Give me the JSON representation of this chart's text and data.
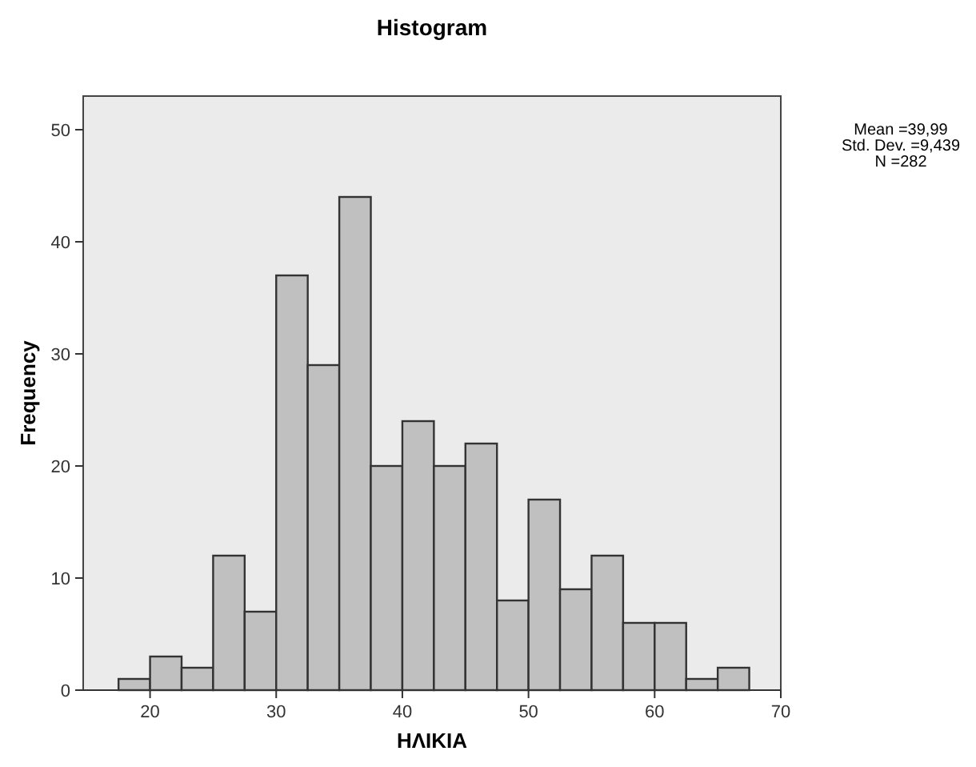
{
  "chart_data": {
    "type": "histogram",
    "title": "Histogram",
    "xlabel": "ΗΛΙΚΙΑ",
    "ylabel": "Frequency",
    "bins": [
      17.5,
      20,
      22.5,
      25,
      27.5,
      30,
      32.5,
      35,
      37.5,
      40,
      42.5,
      45,
      47.5,
      50,
      52.5,
      55,
      57.5,
      60,
      62.5,
      65,
      67.5
    ],
    "values": [
      1,
      3,
      2,
      12,
      7,
      37,
      29,
      44,
      20,
      24,
      20,
      22,
      8,
      17,
      9,
      12,
      6,
      6,
      1,
      2
    ],
    "color": "#c0c0c0",
    "xlim": [
      14.7,
      70
    ],
    "xticks": [
      20,
      30,
      40,
      50,
      60,
      70
    ],
    "ylim": [
      0,
      53
    ],
    "yticks": [
      0,
      10,
      20,
      30,
      40,
      50
    ],
    "grid": false,
    "annotations": [
      "Mean =39,99",
      "Std. Dev. =9,439",
      "N =282"
    ]
  }
}
